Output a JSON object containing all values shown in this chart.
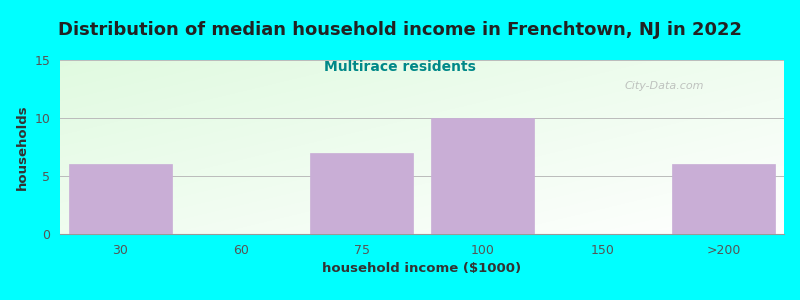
{
  "title": "Distribution of median household income in Frenchtown, NJ in 2022",
  "subtitle": "Multirace residents",
  "xlabel": "household income ($1000)",
  "ylabel": "households",
  "categories": [
    "30",
    "60",
    "75",
    "100",
    "150",
    ">200"
  ],
  "values": [
    6,
    0,
    7,
    10,
    0,
    6
  ],
  "bar_color": "#c9aed6",
  "bar_edge_color": "#c9aed6",
  "title_fontsize": 13,
  "subtitle_fontsize": 10,
  "subtitle_color": "#008888",
  "axis_label_fontsize": 9.5,
  "tick_fontsize": 9,
  "ylim": [
    0,
    15
  ],
  "yticks": [
    0,
    5,
    10,
    15
  ],
  "background_outer": "#00ffff",
  "grid_color": "#bbbbbb",
  "watermark_text": "City-Data.com",
  "bar_width": 0.85,
  "title_color": "#222222"
}
